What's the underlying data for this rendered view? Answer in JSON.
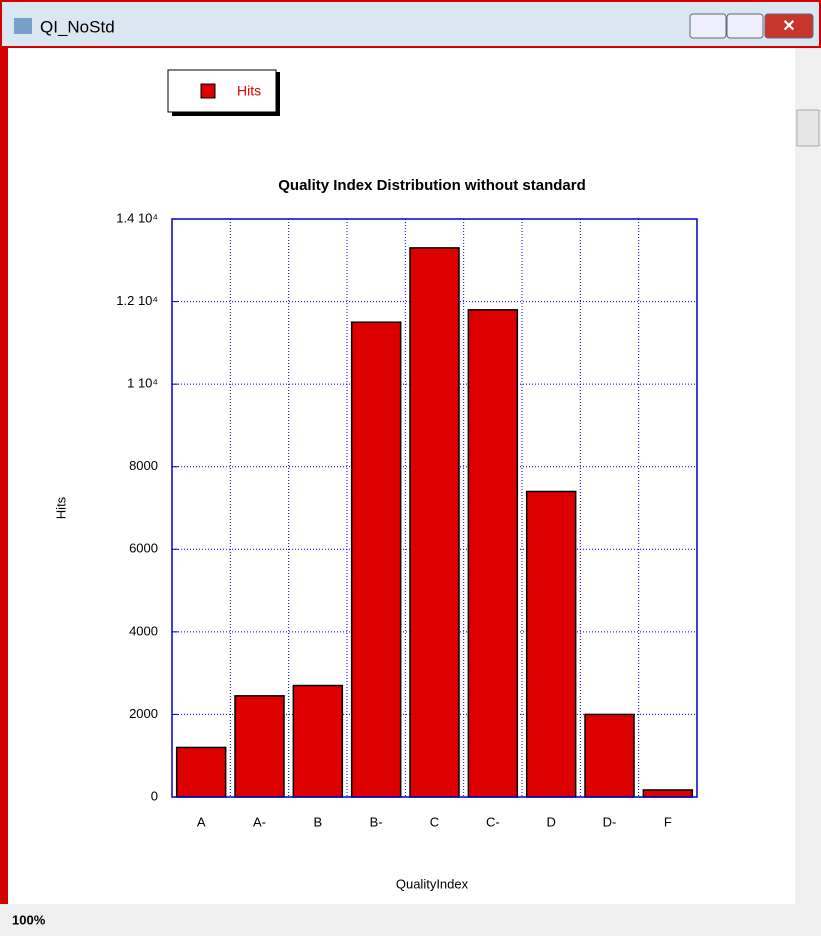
{
  "window": {
    "title": "QI_NoStd",
    "zoom": "100%"
  },
  "chart_data": {
    "type": "bar",
    "title": "Quality Index Distribution without standard",
    "x_label": "QualityIndex",
    "y_label": "Hits",
    "categories": [
      "A",
      "A-",
      "B",
      "B-",
      "C",
      "C-",
      "D",
      "D-",
      "F"
    ],
    "series": [
      {
        "name": "Hits",
        "color": "#dd0000",
        "values": [
          1200,
          2450,
          2700,
          11500,
          13300,
          11800,
          7400,
          2000,
          170
        ]
      }
    ],
    "ylim": [
      0,
      14000
    ],
    "yticks": [
      0,
      2000,
      4000,
      6000,
      8000,
      {
        "value": 10000,
        "label": "1 10⁴"
      },
      {
        "value": 12000,
        "label": "1.2 10⁴"
      },
      {
        "value": 14000,
        "label": "1.4 10⁴"
      }
    ],
    "grid": true,
    "legend": "top-left"
  }
}
